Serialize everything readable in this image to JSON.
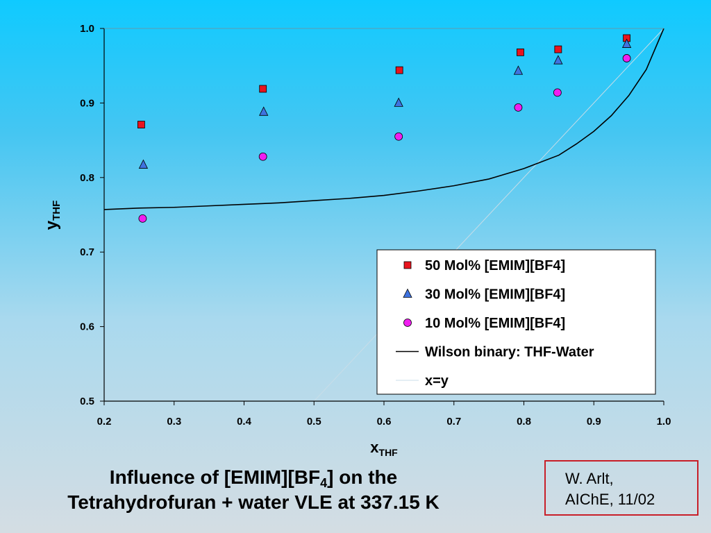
{
  "chart_data": {
    "type": "scatter",
    "xlabel_main": "x",
    "xlabel_sub": "THF",
    "ylabel_main": "y",
    "ylabel_sub": "THF",
    "xlim": [
      0.2,
      1.0
    ],
    "ylim": [
      0.5,
      1.0
    ],
    "x_ticks": [
      "0.2",
      "0.3",
      "0.4",
      "0.5",
      "0.6",
      "0.7",
      "0.8",
      "0.9",
      "1.0"
    ],
    "y_ticks": [
      "0.5",
      "0.6",
      "0.7",
      "0.8",
      "0.9",
      "1.0"
    ],
    "x_tick_values": [
      0.2,
      0.3,
      0.4,
      0.5,
      0.6,
      0.7,
      0.8,
      0.9,
      1.0
    ],
    "y_tick_values": [
      0.5,
      0.6,
      0.7,
      0.8,
      0.9,
      1.0
    ],
    "grid": false,
    "legend_position": "bottom-right",
    "series": [
      {
        "name": "50 Mol% [EMIM][BF4]",
        "marker": "square",
        "color": "#e8141e",
        "x": [
          0.253,
          0.427,
          0.622,
          0.795,
          0.849,
          0.947
        ],
        "y": [
          0.871,
          0.919,
          0.944,
          0.968,
          0.972,
          0.987
        ]
      },
      {
        "name": "30 Mol% [EMIM][BF4]",
        "marker": "triangle",
        "color": "#3f73e0",
        "x": [
          0.256,
          0.428,
          0.621,
          0.792,
          0.849,
          0.947
        ],
        "y": [
          0.817,
          0.888,
          0.9,
          0.943,
          0.957,
          0.979
        ]
      },
      {
        "name": "10 Mol% [EMIM][BF4]",
        "marker": "circle",
        "color": "#f01ef0",
        "x": [
          0.255,
          0.427,
          0.621,
          0.792,
          0.848,
          0.947
        ],
        "y": [
          0.745,
          0.828,
          0.855,
          0.894,
          0.914,
          0.96
        ]
      },
      {
        "name": "Wilson binary: THF-Water",
        "marker": "line",
        "color": "#000000",
        "x": [
          0.2,
          0.25,
          0.3,
          0.35,
          0.4,
          0.45,
          0.5,
          0.55,
          0.6,
          0.65,
          0.7,
          0.75,
          0.8,
          0.85,
          0.875,
          0.9,
          0.925,
          0.95,
          0.975,
          1.0
        ],
        "y": [
          0.757,
          0.759,
          0.76,
          0.762,
          0.764,
          0.766,
          0.769,
          0.772,
          0.776,
          0.782,
          0.789,
          0.798,
          0.812,
          0.83,
          0.845,
          0.862,
          0.883,
          0.91,
          0.945,
          1.0
        ]
      },
      {
        "name": "x=y",
        "marker": "line",
        "color": "#c8dde8",
        "x": [
          0.5,
          1.0
        ],
        "y": [
          0.5,
          1.0
        ]
      }
    ]
  },
  "slide": {
    "title_line1_pre": "Influence of [EMIM][BF",
    "title_line1_sub": "4",
    "title_line1_post": "] on the",
    "title_line2": "Tetrahydrofuran + water VLE at 337.15 K",
    "credit_line1": "W. Arlt,",
    "credit_line2": "AIChE, 11/02",
    "credit_border_color": "#c81e28"
  }
}
